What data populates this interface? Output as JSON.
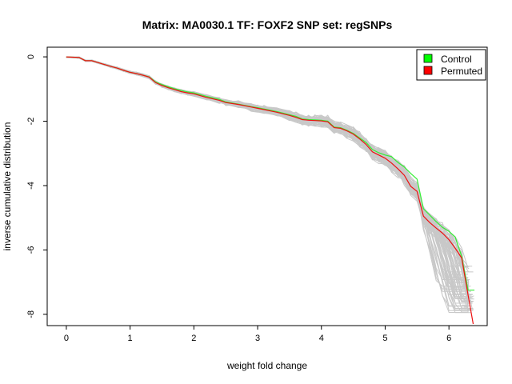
{
  "chart_data": {
    "type": "line",
    "title": "Matrix: MA0030.1 TF: FOXF2 SNP set: regSNPs",
    "xlabel": "weight fold change",
    "ylabel": "inverse cumulative distribution",
    "xlim": [
      -0.3,
      6.6
    ],
    "ylim": [
      -8.35,
      0.3
    ],
    "x_ticks": [
      0,
      1,
      2,
      3,
      4,
      5,
      6
    ],
    "y_ticks": [
      0,
      -2,
      -4,
      -6,
      -8
    ],
    "legend": {
      "position": "top-right",
      "entries": [
        {
          "label": "Control",
          "color": "#00ff00"
        },
        {
          "label": "Permuted",
          "color": "#ff0000"
        }
      ]
    },
    "series": [
      {
        "name": "Control",
        "color": "#33ee33",
        "x": [
          0.0,
          0.2,
          0.3,
          0.4,
          0.5,
          0.6,
          0.7,
          0.8,
          0.9,
          1.0,
          1.1,
          1.2,
          1.3,
          1.4,
          1.5,
          1.6,
          1.7,
          1.8,
          1.9,
          2.0,
          2.2,
          2.4,
          2.5,
          2.7,
          2.9,
          3.0,
          3.1,
          3.3,
          3.5,
          3.6,
          3.7,
          3.8,
          3.9,
          4.0,
          4.1,
          4.2,
          4.3,
          4.4,
          4.5,
          4.6,
          4.7,
          4.8,
          4.9,
          5.0,
          5.1,
          5.2,
          5.3,
          5.4,
          5.5,
          5.6,
          5.7,
          5.8,
          5.9,
          6.0,
          6.1,
          6.2,
          6.3,
          6.4
        ],
        "y": [
          0.0,
          -0.02,
          -0.12,
          -0.12,
          -0.18,
          -0.24,
          -0.3,
          -0.35,
          -0.42,
          -0.48,
          -0.52,
          -0.57,
          -0.62,
          -0.78,
          -0.86,
          -0.93,
          -0.99,
          -1.04,
          -1.09,
          -1.12,
          -1.23,
          -1.32,
          -1.4,
          -1.47,
          -1.55,
          -1.58,
          -1.62,
          -1.7,
          -1.8,
          -1.85,
          -1.93,
          -1.95,
          -1.96,
          -1.97,
          -2.0,
          -2.18,
          -2.2,
          -2.28,
          -2.38,
          -2.52,
          -2.66,
          -2.88,
          -2.98,
          -3.05,
          -3.1,
          -3.28,
          -3.42,
          -3.62,
          -3.8,
          -4.72,
          -4.92,
          -5.12,
          -5.3,
          -5.42,
          -5.6,
          -6.2,
          -7.25,
          -7.25
        ]
      },
      {
        "name": "Permuted",
        "color": "#ee1111",
        "x": [
          0.0,
          0.2,
          0.3,
          0.4,
          0.5,
          0.6,
          0.7,
          0.8,
          0.9,
          1.0,
          1.1,
          1.2,
          1.3,
          1.4,
          1.5,
          1.6,
          1.7,
          1.8,
          1.9,
          2.0,
          2.2,
          2.4,
          2.5,
          2.7,
          2.9,
          3.0,
          3.1,
          3.3,
          3.5,
          3.6,
          3.7,
          3.8,
          3.9,
          4.0,
          4.1,
          4.2,
          4.3,
          4.4,
          4.5,
          4.6,
          4.7,
          4.8,
          4.9,
          5.0,
          5.1,
          5.2,
          5.3,
          5.4,
          5.5,
          5.6,
          5.7,
          5.8,
          5.9,
          6.0,
          6.1,
          6.2,
          6.3,
          6.38
        ],
        "y": [
          0.0,
          -0.02,
          -0.12,
          -0.12,
          -0.18,
          -0.24,
          -0.3,
          -0.35,
          -0.42,
          -0.48,
          -0.52,
          -0.57,
          -0.63,
          -0.8,
          -0.89,
          -0.96,
          -1.02,
          -1.08,
          -1.12,
          -1.15,
          -1.26,
          -1.35,
          -1.42,
          -1.48,
          -1.56,
          -1.6,
          -1.64,
          -1.72,
          -1.82,
          -1.88,
          -1.95,
          -1.97,
          -1.98,
          -1.99,
          -2.02,
          -2.2,
          -2.22,
          -2.3,
          -2.4,
          -2.55,
          -2.72,
          -2.95,
          -3.05,
          -3.15,
          -3.3,
          -3.48,
          -3.68,
          -4.02,
          -4.18,
          -4.95,
          -5.15,
          -5.32,
          -5.48,
          -5.68,
          -5.95,
          -6.25,
          -7.4,
          -8.3
        ]
      }
    ]
  }
}
